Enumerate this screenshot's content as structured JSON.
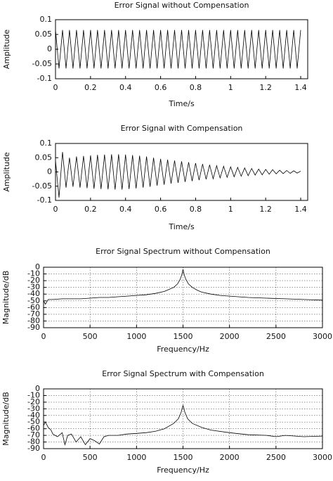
{
  "chart_data": [
    {
      "type": "line",
      "title": "Error Signal without Compensation",
      "xlabel": "Time/s",
      "ylabel": "Amplitude",
      "color": "#000000",
      "grid": false,
      "xlim": [
        0,
        1.44
      ],
      "xticks": [
        0,
        0.2,
        0.4,
        0.6,
        0.8,
        1,
        1.2,
        1.4
      ],
      "ylim": [
        -0.1,
        0.1
      ],
      "yticks": [
        -0.1,
        -0.05,
        0,
        0.05,
        0.1
      ],
      "x": [
        0,
        0.02,
        0.04,
        0.06,
        0.08,
        0.1,
        0.12,
        0.14,
        0.16,
        0.18,
        0.2,
        0.22,
        0.24,
        0.26,
        0.28,
        0.3,
        0.32,
        0.34,
        0.36,
        0.38,
        0.4,
        0.42,
        0.44,
        0.46,
        0.48,
        0.5,
        0.52,
        0.54,
        0.56,
        0.58,
        0.6,
        0.62,
        0.64,
        0.66,
        0.68,
        0.7,
        0.72,
        0.74,
        0.76,
        0.78,
        0.8,
        0.82,
        0.84,
        0.86,
        0.88,
        0.9,
        0.92,
        0.94,
        0.96,
        0.98,
        1,
        1.02,
        1.04,
        1.06,
        1.08,
        1.1,
        1.12,
        1.14,
        1.16,
        1.18,
        1.2,
        1.22,
        1.24,
        1.26,
        1.28,
        1.3,
        1.32,
        1.34,
        1.36,
        1.38,
        1.4
      ],
      "values": [
        0.065,
        -0.065,
        0.065,
        -0.065,
        0.065,
        -0.065,
        0.065,
        -0.065,
        0.065,
        -0.065,
        0.065,
        -0.065,
        0.065,
        -0.065,
        0.065,
        -0.065,
        0.065,
        -0.065,
        0.065,
        -0.065,
        0.065,
        -0.065,
        0.065,
        -0.065,
        0.065,
        -0.065,
        0.065,
        -0.065,
        0.065,
        -0.065,
        0.065,
        -0.065,
        0.065,
        -0.065,
        0.065,
        -0.065,
        0.065,
        -0.065,
        0.065,
        -0.065,
        0.065,
        -0.065,
        0.065,
        -0.065,
        0.065,
        -0.065,
        0.065,
        -0.065,
        0.065,
        -0.065,
        0.065,
        -0.065,
        0.065,
        -0.065,
        0.065,
        -0.065,
        0.065,
        -0.065,
        0.065,
        -0.065,
        0.065,
        -0.065,
        0.065,
        -0.065,
        0.065,
        -0.065,
        0.065,
        -0.065,
        0.065,
        -0.065,
        0.065
      ]
    },
    {
      "type": "line",
      "title": "Error Signal with Compensation",
      "xlabel": "Time/s",
      "ylabel": "Amplitude",
      "color": "#000000",
      "grid": false,
      "xlim": [
        0,
        1.44
      ],
      "xticks": [
        0,
        0.2,
        0.4,
        0.6,
        0.8,
        1,
        1.2,
        1.4
      ],
      "ylim": [
        -0.1,
        0.1
      ],
      "yticks": [
        -0.1,
        -0.05,
        0,
        0.05,
        0.1
      ],
      "x": [
        0,
        0.02,
        0.04,
        0.06,
        0.08,
        0.1,
        0.12,
        0.14,
        0.16,
        0.18,
        0.2,
        0.22,
        0.24,
        0.26,
        0.28,
        0.3,
        0.32,
        0.34,
        0.36,
        0.38,
        0.4,
        0.42,
        0.44,
        0.46,
        0.48,
        0.5,
        0.52,
        0.54,
        0.56,
        0.58,
        0.6,
        0.62,
        0.64,
        0.66,
        0.68,
        0.7,
        0.72,
        0.74,
        0.76,
        0.78,
        0.8,
        0.82,
        0.84,
        0.86,
        0.88,
        0.9,
        0.92,
        0.94,
        0.96,
        0.98,
        1,
        1.02,
        1.04,
        1.06,
        1.08,
        1.1,
        1.12,
        1.14,
        1.16,
        1.18,
        1.2,
        1.22,
        1.24,
        1.26,
        1.28,
        1.3,
        1.32,
        1.34,
        1.36,
        1.38,
        1.4
      ],
      "values": [
        0.04,
        -0.09,
        0.07,
        -0.055,
        0.05,
        -0.052,
        0.054,
        -0.055,
        0.056,
        -0.057,
        0.058,
        -0.059,
        0.06,
        -0.06,
        0.061,
        -0.061,
        0.062,
        -0.062,
        0.062,
        -0.062,
        0.061,
        -0.06,
        0.059,
        -0.058,
        0.057,
        -0.055,
        0.054,
        -0.052,
        0.05,
        -0.048,
        0.046,
        -0.045,
        0.043,
        -0.041,
        0.04,
        -0.038,
        0.037,
        -0.035,
        0.034,
        -0.032,
        0.031,
        -0.029,
        0.028,
        -0.026,
        0.025,
        -0.024,
        0.022,
        -0.021,
        0.02,
        -0.019,
        0.018,
        -0.017,
        0.016,
        -0.015,
        0.014,
        -0.013,
        0.012,
        -0.011,
        0.01,
        -0.01,
        0.009,
        -0.008,
        0.008,
        -0.007,
        0.006,
        -0.006,
        0.005,
        -0.005,
        0.004,
        -0.004,
        0.003
      ]
    },
    {
      "type": "line",
      "title": "Error Signal Spectrum without Compensation",
      "xlabel": "Frequency/Hz",
      "ylabel": "Magnitude/dB",
      "color": "#000000",
      "grid": true,
      "xlim": [
        0,
        3000
      ],
      "xticks": [
        0,
        500,
        1000,
        1500,
        2000,
        2500,
        3000
      ],
      "ylim": [
        -90,
        0
      ],
      "yticks": [
        0,
        -10,
        -20,
        -30,
        -40,
        -50,
        -60,
        -70,
        -80,
        -90
      ],
      "x": [
        0,
        20,
        50,
        100,
        200,
        300,
        400,
        500,
        600,
        700,
        800,
        900,
        1000,
        1100,
        1200,
        1300,
        1350,
        1400,
        1440,
        1470,
        1490,
        1500,
        1510,
        1530,
        1560,
        1600,
        1650,
        1700,
        1800,
        1900,
        2000,
        2200,
        2400,
        2600,
        2800,
        3000
      ],
      "values": [
        -50,
        -55,
        -48,
        -48,
        -47,
        -47,
        -47,
        -46,
        -45,
        -45,
        -44,
        -43,
        -42,
        -41,
        -39,
        -36,
        -33,
        -30,
        -25,
        -18,
        -10,
        -3,
        -10,
        -18,
        -25,
        -30,
        -34,
        -37,
        -40,
        -42,
        -43,
        -45,
        -46,
        -47,
        -48,
        -49
      ]
    },
    {
      "type": "line",
      "title": "Error Signal Spectrum with Compensation",
      "xlabel": "Frequency/Hz",
      "ylabel": "Magnitude/dB",
      "color": "#000000",
      "grid": true,
      "xlim": [
        0,
        3000
      ],
      "xticks": [
        0,
        500,
        1000,
        1500,
        2000,
        2500,
        3000
      ],
      "ylim": [
        -90,
        0
      ],
      "yticks": [
        0,
        -10,
        -20,
        -30,
        -40,
        -50,
        -60,
        -70,
        -80,
        -90
      ],
      "x": [
        0,
        20,
        50,
        80,
        100,
        150,
        200,
        230,
        260,
        300,
        350,
        400,
        450,
        500,
        550,
        600,
        650,
        700,
        800,
        900,
        1000,
        1100,
        1200,
        1300,
        1400,
        1450,
        1480,
        1500,
        1520,
        1550,
        1600,
        1700,
        1800,
        2000,
        2200,
        2400,
        2500,
        2600,
        2800,
        3000
      ],
      "values": [
        -55,
        -50,
        -58,
        -62,
        -68,
        -72,
        -66,
        -84,
        -70,
        -68,
        -80,
        -72,
        -84,
        -75,
        -78,
        -83,
        -72,
        -70,
        -70,
        -68,
        -67,
        -66,
        -64,
        -60,
        -52,
        -45,
        -35,
        -25,
        -35,
        -45,
        -52,
        -58,
        -62,
        -66,
        -69,
        -70,
        -72,
        -70,
        -72,
        -71
      ]
    }
  ]
}
